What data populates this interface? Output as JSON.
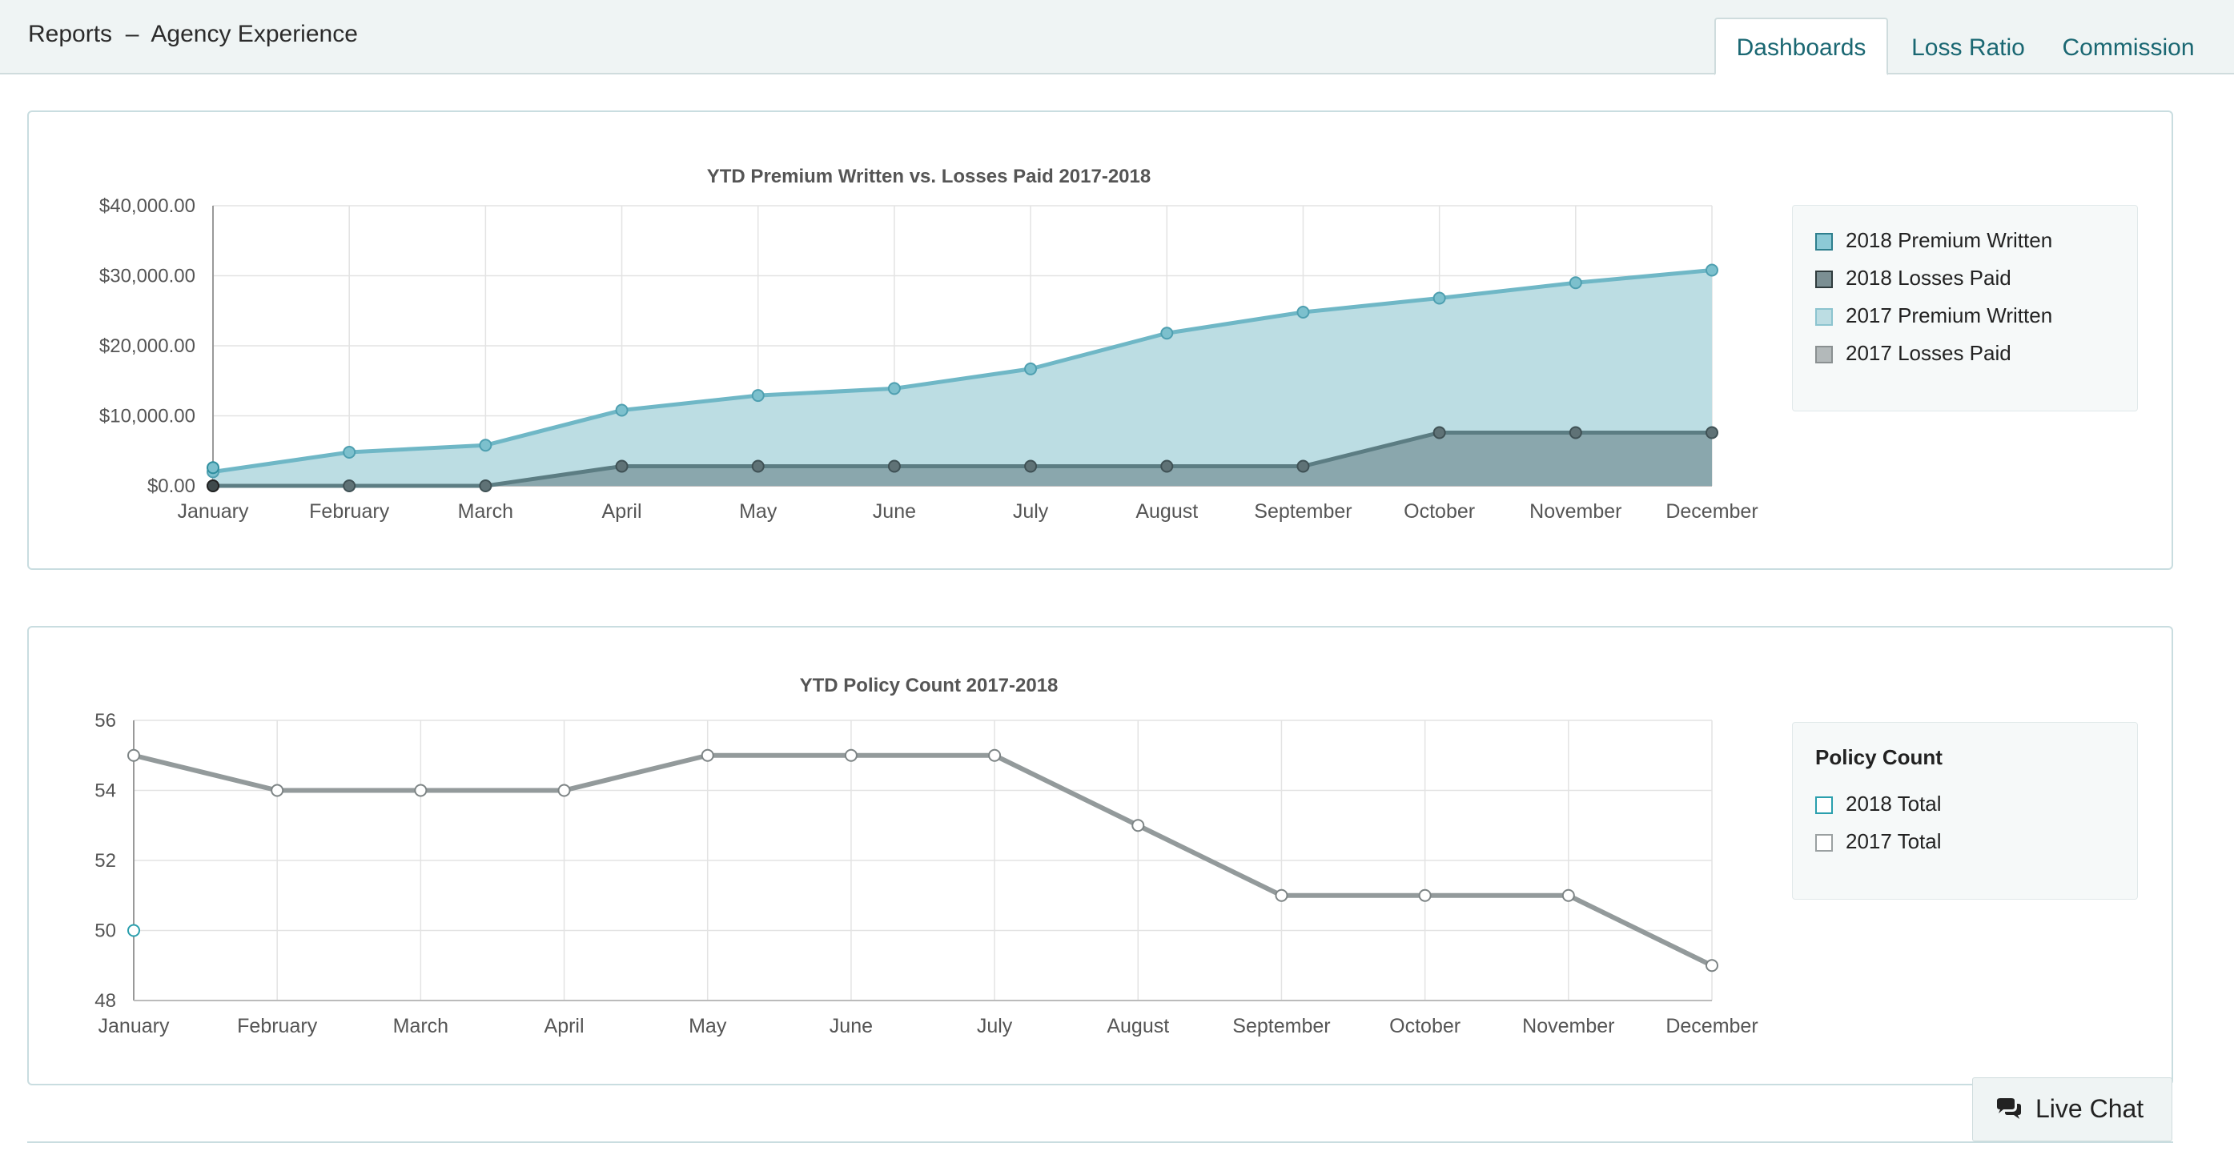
{
  "header": {
    "title": "Reports  –  Agency Experience",
    "tabs": [
      {
        "label": "Dashboards",
        "active": true
      },
      {
        "label": "Loss Ratio",
        "active": false
      },
      {
        "label": "Commission",
        "active": false
      }
    ]
  },
  "colors": {
    "accent": "#1a6772",
    "premium2018": "#6fb7c6",
    "premium2017": "#bcdde3",
    "losses2018": "#5c7d83",
    "losses2017": "#8aa7ad",
    "count2017": "#939a9b",
    "count2018": "#2a9fad"
  },
  "live_chat": {
    "label": "Live Chat",
    "icon": "chat-bubbles-icon"
  },
  "chart_data": [
    {
      "type": "area",
      "title": "YTD Premium Written vs. Losses Paid 2017-2018",
      "categories": [
        "January",
        "February",
        "March",
        "April",
        "May",
        "June",
        "July",
        "August",
        "September",
        "October",
        "November",
        "December"
      ],
      "ylim": [
        0,
        40000
      ],
      "yticks": [
        0,
        10000,
        20000,
        30000,
        40000
      ],
      "ytick_labels": [
        "$0.00",
        "$10,000.00",
        "$20,000.00",
        "$30,000.00",
        "$40,000.00"
      ],
      "grid": true,
      "legend_position": "right",
      "series": [
        {
          "name": "2018 Premium Written",
          "values": [
            2600,
            null,
            null,
            null,
            null,
            null,
            null,
            null,
            null,
            null,
            null,
            null
          ]
        },
        {
          "name": "2018 Losses Paid",
          "values": [
            0,
            null,
            null,
            null,
            null,
            null,
            null,
            null,
            null,
            null,
            null,
            null
          ]
        },
        {
          "name": "2017 Premium Written",
          "values": [
            2000,
            4800,
            5800,
            10800,
            12900,
            13900,
            16700,
            21800,
            24800,
            26800,
            29000,
            30800
          ]
        },
        {
          "name": "2017 Losses Paid",
          "values": [
            0,
            0,
            0,
            2800,
            2800,
            2800,
            2800,
            2800,
            2800,
            7600,
            7600,
            7600
          ]
        }
      ]
    },
    {
      "type": "line",
      "title": "YTD Policy Count 2017-2018",
      "categories": [
        "January",
        "February",
        "March",
        "April",
        "May",
        "June",
        "July",
        "August",
        "September",
        "October",
        "November",
        "December"
      ],
      "ylim": [
        48,
        56
      ],
      "yticks": [
        48,
        50,
        52,
        54,
        56
      ],
      "ytick_labels": [
        "48",
        "50",
        "52",
        "54",
        "56"
      ],
      "grid": true,
      "legend_position": "right",
      "legend_title": "Policy Count",
      "series": [
        {
          "name": "2018 Total",
          "values": [
            50,
            null,
            null,
            null,
            null,
            null,
            null,
            null,
            null,
            null,
            null,
            null
          ]
        },
        {
          "name": "2017 Total",
          "values": [
            55,
            54,
            54,
            54,
            55,
            55,
            55,
            53,
            51,
            51,
            51,
            49
          ]
        }
      ]
    }
  ]
}
